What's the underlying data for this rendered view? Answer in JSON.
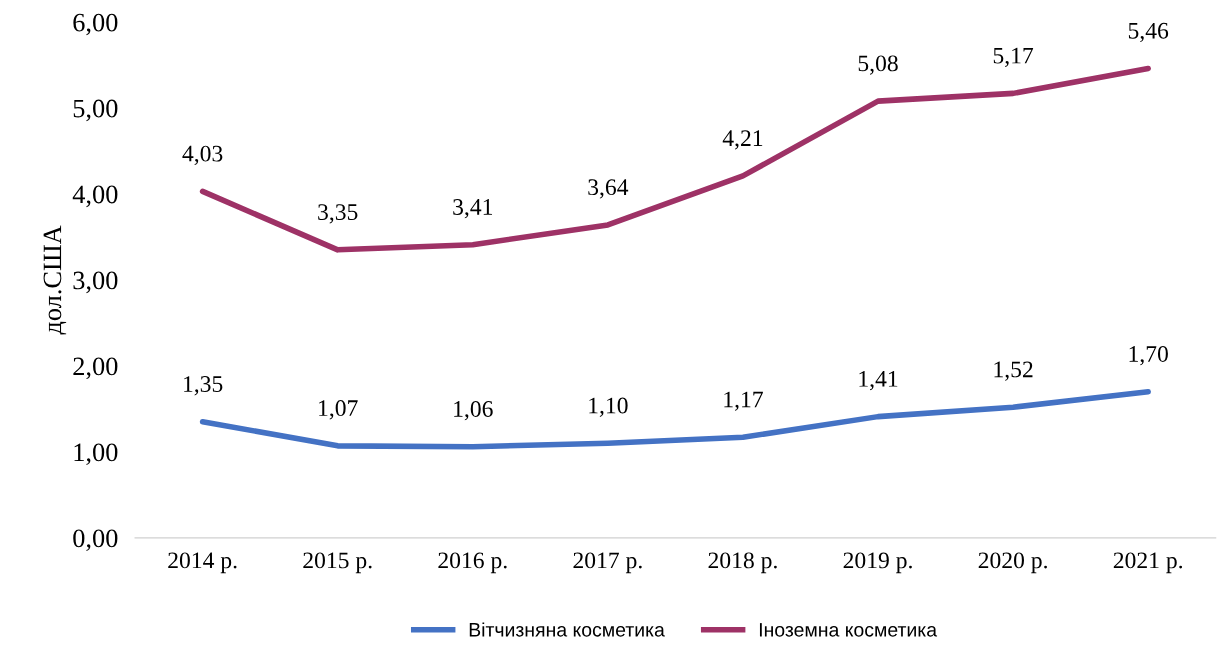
{
  "chart_data": {
    "type": "line",
    "ylabel": "дол.США",
    "categories": [
      "2014 р.",
      "2015 р.",
      "2016 р.",
      "2017 р.",
      "2018 р.",
      "2019 р.",
      "2020 р.",
      "2021 р."
    ],
    "series": [
      {
        "name": "Вітчизняна косметика",
        "color": "#4472c4",
        "values": [
          1.35,
          1.07,
          1.06,
          1.1,
          1.17,
          1.41,
          1.52,
          1.7
        ],
        "value_labels": [
          "1,35",
          "1,07",
          "1,06",
          "1,10",
          "1,17",
          "1,41",
          "1,52",
          "1,70"
        ]
      },
      {
        "name": "Іноземна косметика",
        "color": "#9e3266",
        "values": [
          4.03,
          3.35,
          3.41,
          3.64,
          4.21,
          5.08,
          5.17,
          5.46
        ],
        "value_labels": [
          "4,03",
          "3,35",
          "3,41",
          "3,64",
          "4,21",
          "5,08",
          "5,17",
          "5,46"
        ]
      }
    ],
    "ylim": [
      0,
      6
    ],
    "yticks": [
      {
        "value": 0,
        "label": "0,00"
      },
      {
        "value": 1,
        "label": "1,00"
      },
      {
        "value": 2,
        "label": "2,00"
      },
      {
        "value": 3,
        "label": "3,00"
      },
      {
        "value": 4,
        "label": "4,00"
      },
      {
        "value": 5,
        "label": "5,00"
      },
      {
        "value": 6,
        "label": "6,00"
      }
    ],
    "grid": false,
    "legend": "bottom",
    "marker": "none",
    "line_style": "solid"
  }
}
